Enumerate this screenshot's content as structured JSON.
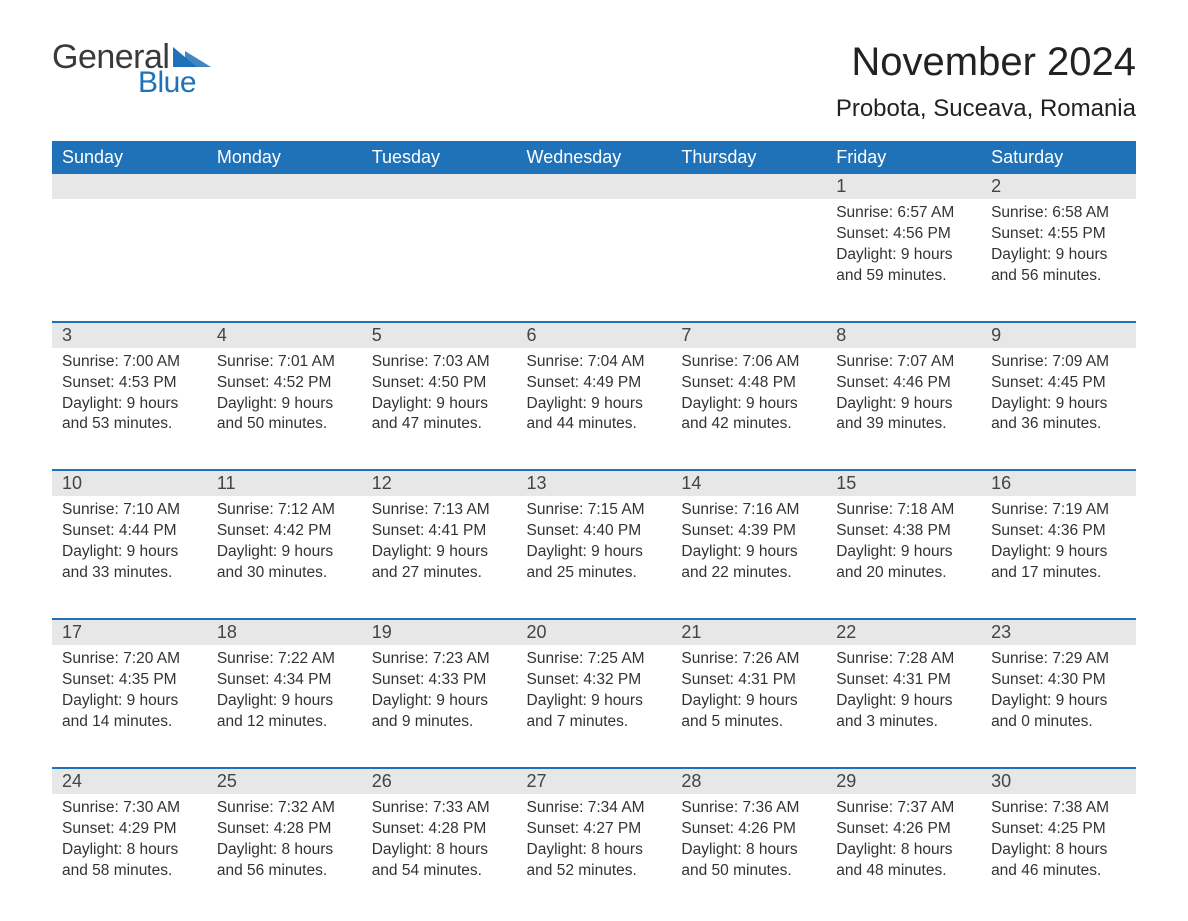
{
  "brand": {
    "part1": "General",
    "part2": "Blue",
    "accent_color": "#1f71b8",
    "text_color": "#3a3a3a"
  },
  "title": "November 2024",
  "location": "Probota, Suceava, Romania",
  "colors": {
    "header_bg": "#1f71b8",
    "header_text": "#ffffff",
    "daynum_bg": "#e7e7e7",
    "body_text": "#333333"
  },
  "columns": [
    "Sunday",
    "Monday",
    "Tuesday",
    "Wednesday",
    "Thursday",
    "Friday",
    "Saturday"
  ],
  "weeks": [
    [
      null,
      null,
      null,
      null,
      null,
      {
        "day": "1",
        "sunrise": "Sunrise: 6:57 AM",
        "sunset": "Sunset: 4:56 PM",
        "daylight1": "Daylight: 9 hours",
        "daylight2": "and 59 minutes."
      },
      {
        "day": "2",
        "sunrise": "Sunrise: 6:58 AM",
        "sunset": "Sunset: 4:55 PM",
        "daylight1": "Daylight: 9 hours",
        "daylight2": "and 56 minutes."
      }
    ],
    [
      {
        "day": "3",
        "sunrise": "Sunrise: 7:00 AM",
        "sunset": "Sunset: 4:53 PM",
        "daylight1": "Daylight: 9 hours",
        "daylight2": "and 53 minutes."
      },
      {
        "day": "4",
        "sunrise": "Sunrise: 7:01 AM",
        "sunset": "Sunset: 4:52 PM",
        "daylight1": "Daylight: 9 hours",
        "daylight2": "and 50 minutes."
      },
      {
        "day": "5",
        "sunrise": "Sunrise: 7:03 AM",
        "sunset": "Sunset: 4:50 PM",
        "daylight1": "Daylight: 9 hours",
        "daylight2": "and 47 minutes."
      },
      {
        "day": "6",
        "sunrise": "Sunrise: 7:04 AM",
        "sunset": "Sunset: 4:49 PM",
        "daylight1": "Daylight: 9 hours",
        "daylight2": "and 44 minutes."
      },
      {
        "day": "7",
        "sunrise": "Sunrise: 7:06 AM",
        "sunset": "Sunset: 4:48 PM",
        "daylight1": "Daylight: 9 hours",
        "daylight2": "and 42 minutes."
      },
      {
        "day": "8",
        "sunrise": "Sunrise: 7:07 AM",
        "sunset": "Sunset: 4:46 PM",
        "daylight1": "Daylight: 9 hours",
        "daylight2": "and 39 minutes."
      },
      {
        "day": "9",
        "sunrise": "Sunrise: 7:09 AM",
        "sunset": "Sunset: 4:45 PM",
        "daylight1": "Daylight: 9 hours",
        "daylight2": "and 36 minutes."
      }
    ],
    [
      {
        "day": "10",
        "sunrise": "Sunrise: 7:10 AM",
        "sunset": "Sunset: 4:44 PM",
        "daylight1": "Daylight: 9 hours",
        "daylight2": "and 33 minutes."
      },
      {
        "day": "11",
        "sunrise": "Sunrise: 7:12 AM",
        "sunset": "Sunset: 4:42 PM",
        "daylight1": "Daylight: 9 hours",
        "daylight2": "and 30 minutes."
      },
      {
        "day": "12",
        "sunrise": "Sunrise: 7:13 AM",
        "sunset": "Sunset: 4:41 PM",
        "daylight1": "Daylight: 9 hours",
        "daylight2": "and 27 minutes."
      },
      {
        "day": "13",
        "sunrise": "Sunrise: 7:15 AM",
        "sunset": "Sunset: 4:40 PM",
        "daylight1": "Daylight: 9 hours",
        "daylight2": "and 25 minutes."
      },
      {
        "day": "14",
        "sunrise": "Sunrise: 7:16 AM",
        "sunset": "Sunset: 4:39 PM",
        "daylight1": "Daylight: 9 hours",
        "daylight2": "and 22 minutes."
      },
      {
        "day": "15",
        "sunrise": "Sunrise: 7:18 AM",
        "sunset": "Sunset: 4:38 PM",
        "daylight1": "Daylight: 9 hours",
        "daylight2": "and 20 minutes."
      },
      {
        "day": "16",
        "sunrise": "Sunrise: 7:19 AM",
        "sunset": "Sunset: 4:36 PM",
        "daylight1": "Daylight: 9 hours",
        "daylight2": "and 17 minutes."
      }
    ],
    [
      {
        "day": "17",
        "sunrise": "Sunrise: 7:20 AM",
        "sunset": "Sunset: 4:35 PM",
        "daylight1": "Daylight: 9 hours",
        "daylight2": "and 14 minutes."
      },
      {
        "day": "18",
        "sunrise": "Sunrise: 7:22 AM",
        "sunset": "Sunset: 4:34 PM",
        "daylight1": "Daylight: 9 hours",
        "daylight2": "and 12 minutes."
      },
      {
        "day": "19",
        "sunrise": "Sunrise: 7:23 AM",
        "sunset": "Sunset: 4:33 PM",
        "daylight1": "Daylight: 9 hours",
        "daylight2": "and 9 minutes."
      },
      {
        "day": "20",
        "sunrise": "Sunrise: 7:25 AM",
        "sunset": "Sunset: 4:32 PM",
        "daylight1": "Daylight: 9 hours",
        "daylight2": "and 7 minutes."
      },
      {
        "day": "21",
        "sunrise": "Sunrise: 7:26 AM",
        "sunset": "Sunset: 4:31 PM",
        "daylight1": "Daylight: 9 hours",
        "daylight2": "and 5 minutes."
      },
      {
        "day": "22",
        "sunrise": "Sunrise: 7:28 AM",
        "sunset": "Sunset: 4:31 PM",
        "daylight1": "Daylight: 9 hours",
        "daylight2": "and 3 minutes."
      },
      {
        "day": "23",
        "sunrise": "Sunrise: 7:29 AM",
        "sunset": "Sunset: 4:30 PM",
        "daylight1": "Daylight: 9 hours",
        "daylight2": "and 0 minutes."
      }
    ],
    [
      {
        "day": "24",
        "sunrise": "Sunrise: 7:30 AM",
        "sunset": "Sunset: 4:29 PM",
        "daylight1": "Daylight: 8 hours",
        "daylight2": "and 58 minutes."
      },
      {
        "day": "25",
        "sunrise": "Sunrise: 7:32 AM",
        "sunset": "Sunset: 4:28 PM",
        "daylight1": "Daylight: 8 hours",
        "daylight2": "and 56 minutes."
      },
      {
        "day": "26",
        "sunrise": "Sunrise: 7:33 AM",
        "sunset": "Sunset: 4:28 PM",
        "daylight1": "Daylight: 8 hours",
        "daylight2": "and 54 minutes."
      },
      {
        "day": "27",
        "sunrise": "Sunrise: 7:34 AM",
        "sunset": "Sunset: 4:27 PM",
        "daylight1": "Daylight: 8 hours",
        "daylight2": "and 52 minutes."
      },
      {
        "day": "28",
        "sunrise": "Sunrise: 7:36 AM",
        "sunset": "Sunset: 4:26 PM",
        "daylight1": "Daylight: 8 hours",
        "daylight2": "and 50 minutes."
      },
      {
        "day": "29",
        "sunrise": "Sunrise: 7:37 AM",
        "sunset": "Sunset: 4:26 PM",
        "daylight1": "Daylight: 8 hours",
        "daylight2": "and 48 minutes."
      },
      {
        "day": "30",
        "sunrise": "Sunrise: 7:38 AM",
        "sunset": "Sunset: 4:25 PM",
        "daylight1": "Daylight: 8 hours",
        "daylight2": "and 46 minutes."
      }
    ]
  ]
}
